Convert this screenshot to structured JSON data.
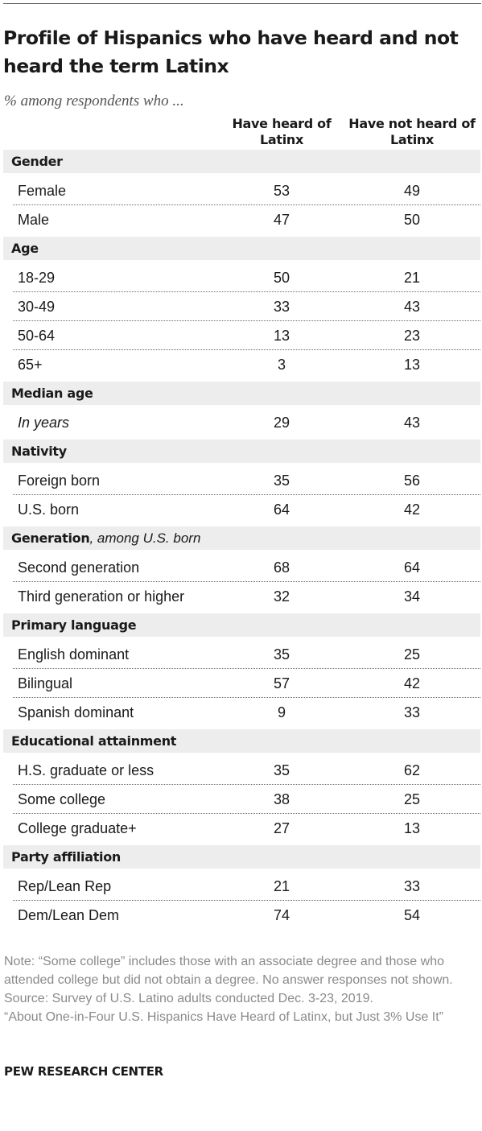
{
  "chart_data": {
    "type": "table",
    "title": "Profile of Hispanics who have heard and not heard the term Latinx",
    "subtitle": "% among respondents who ...",
    "columns": [
      "Have heard of Latinx",
      "Have not heard of Latinx"
    ],
    "sections": [
      {
        "label": "Gender",
        "rows": [
          {
            "label": "Female",
            "values": [
              53,
              49
            ]
          },
          {
            "label": "Male",
            "values": [
              47,
              50
            ]
          }
        ]
      },
      {
        "label": "Age",
        "rows": [
          {
            "label": "18-29",
            "values": [
              50,
              21
            ]
          },
          {
            "label": "30-49",
            "values": [
              33,
              43
            ]
          },
          {
            "label": "50-64",
            "values": [
              13,
              23
            ]
          },
          {
            "label": "65+",
            "values": [
              3,
              13
            ]
          }
        ]
      },
      {
        "label": "Median age",
        "rows": [
          {
            "label": "In years",
            "italic": true,
            "values": [
              29,
              43
            ]
          }
        ]
      },
      {
        "label": "Nativity",
        "rows": [
          {
            "label": "Foreign born",
            "values": [
              35,
              56
            ]
          },
          {
            "label": "U.S. born",
            "values": [
              64,
              42
            ]
          }
        ]
      },
      {
        "label": "Generation",
        "note": ", among U.S. born",
        "rows": [
          {
            "label": "Second generation",
            "values": [
              68,
              64
            ]
          },
          {
            "label": "Third generation or higher",
            "values": [
              32,
              34
            ]
          }
        ]
      },
      {
        "label": "Primary language",
        "rows": [
          {
            "label": "English dominant",
            "values": [
              35,
              25
            ]
          },
          {
            "label": "Bilingual",
            "values": [
              57,
              42
            ]
          },
          {
            "label": "Spanish dominant",
            "values": [
              9,
              33
            ]
          }
        ]
      },
      {
        "label": "Educational attainment",
        "rows": [
          {
            "label": "H.S. graduate or less",
            "values": [
              35,
              62
            ]
          },
          {
            "label": "Some college",
            "values": [
              38,
              25
            ]
          },
          {
            "label": "College graduate+",
            "values": [
              27,
              13
            ]
          }
        ]
      },
      {
        "label": "Party affiliation",
        "rows": [
          {
            "label": "Rep/Lean Rep",
            "values": [
              21,
              33
            ]
          },
          {
            "label": "Dem/Lean Dem",
            "values": [
              74,
              54
            ]
          }
        ]
      }
    ]
  },
  "footer": {
    "note": "Note: “Some college” includes those with an associate degree and those who attended college but did not obtain a degree. No answer responses not shown.",
    "source": "Source: Survey of U.S. Latino adults conducted Dec. 3-23, 2019.",
    "report": "“About One-in-Four U.S. Hispanics Have Heard of Latinx, but Just 3% Use It”",
    "brand": "PEW RESEARCH CENTER"
  },
  "colors": {
    "section_bg": "#ededed",
    "text": "#1a1a1a",
    "footnote": "#8a8a8a"
  }
}
